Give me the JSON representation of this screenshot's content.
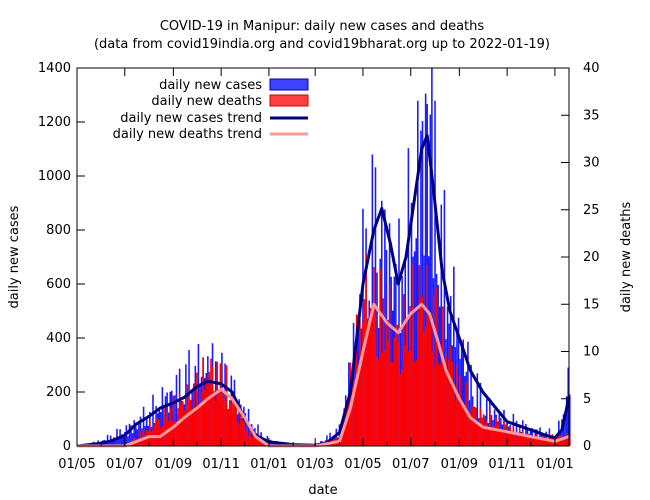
{
  "chart_data": {
    "type": "bar",
    "title": "COVID-19 in Manipur: daily new cases and deaths",
    "subtitle": "(data from covid19india.org and covid19bharat.org up to 2022-01-19)",
    "xlabel": "date",
    "ylabel": "daily new cases",
    "y2label": "daily new deaths",
    "xlim": [
      "2020-05-01",
      "2022-01-19"
    ],
    "ylim": [
      0,
      1400
    ],
    "y2lim": [
      0,
      40
    ],
    "x_ticks": [
      "01/05",
      "01/07",
      "01/09",
      "01/11",
      "01/01",
      "01/03",
      "01/05",
      "01/07",
      "01/09",
      "01/11",
      "01/01"
    ],
    "y_ticks": [
      "0",
      "200",
      "400",
      "600",
      "800",
      "1000",
      "1200",
      "1400"
    ],
    "y2_ticks": [
      "0",
      "5",
      "10",
      "15",
      "20",
      "25",
      "30",
      "35",
      "40"
    ],
    "legend_position": "top-left",
    "series": [
      {
        "name": "daily new cases",
        "style": "bars",
        "axis": "left",
        "color": "#1a1aff",
        "x": [
          "2020-05-01",
          "2020-06-01",
          "2020-07-01",
          "2020-08-01",
          "2020-08-15",
          "2020-09-01",
          "2020-09-15",
          "2020-10-01",
          "2020-10-15",
          "2020-11-01",
          "2020-11-15",
          "2020-12-01",
          "2020-12-15",
          "2021-01-01",
          "2021-02-01",
          "2021-03-01",
          "2021-04-01",
          "2021-04-15",
          "2021-05-01",
          "2021-05-15",
          "2021-06-01",
          "2021-06-15",
          "2021-07-01",
          "2021-07-15",
          "2021-07-25",
          "2021-08-01",
          "2021-08-15",
          "2021-09-01",
          "2021-09-15",
          "2021-10-01",
          "2021-11-01",
          "2021-12-01",
          "2022-01-01",
          "2022-01-10",
          "2022-01-19"
        ],
        "values": [
          0,
          20,
          60,
          120,
          160,
          200,
          240,
          280,
          300,
          250,
          200,
          120,
          60,
          20,
          5,
          5,
          60,
          300,
          650,
          820,
          700,
          600,
          820,
          1100,
          1300,
          900,
          600,
          400,
          250,
          150,
          90,
          60,
          40,
          100,
          280
        ]
      },
      {
        "name": "daily new deaths",
        "style": "bars",
        "axis": "right",
        "color": "#ff0000",
        "x": [
          "2020-05-01",
          "2020-07-01",
          "2020-08-01",
          "2020-09-01",
          "2020-10-01",
          "2020-10-15",
          "2020-11-01",
          "2020-11-15",
          "2020-12-01",
          "2021-01-01",
          "2021-03-01",
          "2021-04-01",
          "2021-04-15",
          "2021-05-01",
          "2021-05-15",
          "2021-06-01",
          "2021-06-15",
          "2021-07-01",
          "2021-07-15",
          "2021-08-01",
          "2021-08-15",
          "2021-09-01",
          "2021-09-15",
          "2021-10-01",
          "2021-11-01",
          "2021-12-01",
          "2022-01-01",
          "2022-01-19"
        ],
        "values": [
          0,
          0,
          2,
          4,
          6,
          8,
          7,
          5,
          2,
          0,
          0,
          1,
          7,
          16,
          15,
          13,
          11,
          14,
          16,
          13,
          10,
          6,
          4,
          3,
          2,
          1,
          1,
          1
        ]
      },
      {
        "name": "daily new cases trend",
        "style": "line",
        "axis": "left",
        "color": "#000080",
        "x": [
          "2020-05-01",
          "2020-06-01",
          "2020-06-15",
          "2020-07-01",
          "2020-07-15",
          "2020-08-01",
          "2020-08-15",
          "2020-09-01",
          "2020-09-15",
          "2020-10-01",
          "2020-10-15",
          "2020-11-01",
          "2020-11-15",
          "2020-12-01",
          "2020-12-15",
          "2021-01-01",
          "2021-02-01",
          "2021-03-01",
          "2021-03-15",
          "2021-04-01",
          "2021-04-15",
          "2021-05-01",
          "2021-05-15",
          "2021-05-25",
          "2021-06-05",
          "2021-06-15",
          "2021-06-25",
          "2021-07-05",
          "2021-07-15",
          "2021-07-22",
          "2021-07-30",
          "2021-08-10",
          "2021-08-20",
          "2021-09-01",
          "2021-09-15",
          "2021-10-01",
          "2021-10-15",
          "2021-11-01",
          "2021-12-01",
          "2021-12-20",
          "2022-01-01",
          "2022-01-10",
          "2022-01-19"
        ],
        "values": [
          0,
          10,
          20,
          40,
          80,
          110,
          140,
          160,
          180,
          220,
          240,
          230,
          200,
          100,
          40,
          15,
          5,
          3,
          10,
          50,
          200,
          600,
          800,
          880,
          750,
          600,
          700,
          900,
          1100,
          1150,
          950,
          650,
          500,
          400,
          280,
          200,
          150,
          90,
          60,
          40,
          30,
          60,
          180
        ]
      },
      {
        "name": "daily new deaths trend",
        "style": "line",
        "axis": "right",
        "color": "#ff9999",
        "x": [
          "2020-05-01",
          "2020-07-01",
          "2020-08-01",
          "2020-08-15",
          "2020-09-01",
          "2020-09-15",
          "2020-10-01",
          "2020-10-15",
          "2020-11-01",
          "2020-11-15",
          "2020-12-01",
          "2020-12-15",
          "2021-01-01",
          "2021-03-01",
          "2021-04-01",
          "2021-04-15",
          "2021-05-01",
          "2021-05-15",
          "2021-06-01",
          "2021-06-15",
          "2021-07-01",
          "2021-07-15",
          "2021-07-25",
          "2021-08-05",
          "2021-08-15",
          "2021-09-01",
          "2021-09-15",
          "2021-10-01",
          "2021-11-01",
          "2021-12-01",
          "2022-01-01",
          "2022-01-19"
        ],
        "values": [
          0,
          0,
          1,
          1,
          2,
          3,
          4,
          5,
          6,
          5,
          3,
          1,
          0,
          0,
          0.5,
          4,
          10,
          15,
          13,
          12,
          14,
          15,
          14,
          11,
          8,
          5,
          3,
          2,
          1.5,
          1,
          0.5,
          1
        ]
      }
    ]
  }
}
